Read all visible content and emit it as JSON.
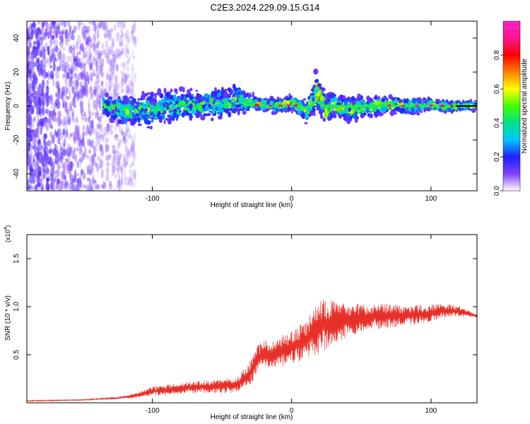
{
  "title": "C2E3.2024.229.09.15.G14",
  "colors": {
    "snr_line": "#e8302a",
    "spectrogram_background": "#ffffff"
  },
  "chart_data": [
    {
      "type": "heatmap",
      "panel": "top",
      "title": "C2E3.2024.229.09.15.G14",
      "xlabel": "Height of straight line (km)",
      "ylabel": "Frequency (Hz)",
      "xlim": [
        -190,
        133
      ],
      "ylim": [
        -50,
        50
      ],
      "x_ticks": [
        "-100",
        "0",
        "100"
      ],
      "x_tick_values": [
        -100,
        0,
        100
      ],
      "y_ticks": [
        "-40",
        "-20",
        "0",
        "20",
        "40"
      ],
      "y_tick_values": [
        -40,
        -20,
        0,
        20,
        40
      ],
      "colorbar": {
        "label": "Normalized spectral amplitude",
        "range": [
          0,
          1
        ],
        "ticks": [
          "0.0",
          "0.2",
          "0.4",
          "0.6",
          "0.8"
        ],
        "tick_values": [
          0.0,
          0.2,
          0.4,
          0.6,
          0.8
        ],
        "colormap": [
          "#ffffff",
          "#8040ff",
          "#2020ff",
          "#00c8ff",
          "#00e08a",
          "#40ff00",
          "#ffff00",
          "#ff8000",
          "#ff0000",
          "#ff1493",
          "#ff20c0"
        ]
      },
      "envelope": {
        "x": [
          -135,
          -120,
          -100,
          -80,
          -60,
          -45,
          -40,
          -35,
          -30,
          -20,
          -10,
          -5,
          0,
          5,
          10,
          15,
          18,
          20,
          25,
          30,
          40,
          50,
          60,
          70,
          80,
          90,
          100,
          110,
          120,
          133
        ],
        "center": [
          0,
          -3,
          -2,
          0,
          1,
          2,
          4,
          3,
          2,
          1,
          0,
          1,
          2,
          0,
          -4,
          3,
          10,
          5,
          -2,
          1,
          -2,
          -1,
          0,
          1,
          0,
          0,
          1,
          0,
          0,
          0
        ],
        "halfwidth": [
          5,
          8,
          9,
          8,
          7,
          9,
          10,
          6,
          4,
          3,
          4,
          3,
          4,
          4,
          6,
          7,
          11,
          9,
          8,
          7,
          6,
          6,
          5,
          4,
          4,
          4,
          3,
          3,
          2,
          2
        ]
      },
      "noise_region_x": [
        -190,
        -112
      ]
    },
    {
      "type": "line",
      "panel": "bottom",
      "xlabel": "Height of straight line (km)",
      "ylabel": "SNR (10 * v/v)",
      "y_multiplier": "(x10",
      "y_multiplier_exp": "4",
      "y_multiplier_close": ")",
      "xlim": [
        -190,
        133
      ],
      "ylim": [
        0,
        1.75
      ],
      "x_ticks": [
        "-100",
        "0",
        "100"
      ],
      "x_tick_values": [
        -100,
        0,
        100
      ],
      "y_ticks": [
        "0.5",
        "1.0",
        "1.5"
      ],
      "y_tick_values": [
        0.5,
        1.0,
        1.5
      ],
      "series": [
        {
          "x": [
            -190,
            -150,
            -125,
            -110,
            -100,
            -80,
            -60,
            -40,
            -30,
            -25,
            -20,
            -10,
            0,
            10,
            15,
            20,
            25,
            30,
            40,
            50,
            60,
            70,
            80,
            90,
            100,
            105,
            110,
            115,
            120,
            125,
            130,
            133
          ],
          "base": [
            0.02,
            0.03,
            0.05,
            0.08,
            0.12,
            0.15,
            0.17,
            0.18,
            0.3,
            0.45,
            0.5,
            0.52,
            0.58,
            0.65,
            0.72,
            0.8,
            0.82,
            0.84,
            0.86,
            0.88,
            0.9,
            0.9,
            0.91,
            0.92,
            0.93,
            0.95,
            0.96,
            0.96,
            0.95,
            0.93,
            0.92,
            0.9
          ],
          "spread": [
            0.01,
            0.01,
            0.02,
            0.06,
            0.1,
            0.12,
            0.14,
            0.15,
            0.25,
            0.3,
            0.3,
            0.32,
            0.34,
            0.4,
            0.5,
            0.6,
            0.55,
            0.45,
            0.35,
            0.3,
            0.28,
            0.25,
            0.22,
            0.2,
            0.18,
            0.16,
            0.14,
            0.12,
            0.12,
            0.08,
            0.05,
            0.04
          ]
        }
      ]
    }
  ]
}
